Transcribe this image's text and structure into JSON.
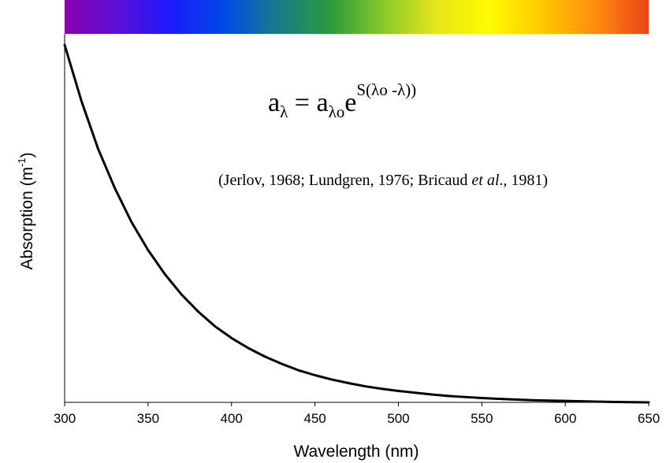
{
  "chart_data": {
    "type": "line",
    "title": "",
    "xlabel": "Wavelength (nm)",
    "ylabel": {
      "text": "Absorption (m",
      "superscript": "-1",
      "close": ")"
    },
    "xlim": [
      300,
      650
    ],
    "ylim": [
      0,
      1
    ],
    "xticks": [
      300,
      350,
      400,
      450,
      500,
      550,
      600,
      650
    ],
    "yticks_shown": false,
    "grid": false,
    "legend": "none",
    "series": [
      {
        "x": [
          300,
          310,
          320,
          330,
          340,
          350,
          360,
          370,
          380,
          390,
          400,
          410,
          420,
          430,
          440,
          450,
          460,
          470,
          480,
          490,
          500,
          510,
          520,
          530,
          540,
          550,
          560,
          570,
          580,
          590,
          600,
          610,
          620,
          630,
          640,
          650
        ],
        "y": [
          1.0,
          0.844,
          0.71,
          0.6,
          0.505,
          0.426,
          0.359,
          0.302,
          0.254,
          0.213,
          0.18,
          0.152,
          0.128,
          0.108,
          0.09,
          0.076,
          0.064,
          0.054,
          0.045,
          0.038,
          0.032,
          0.027,
          0.022,
          0.018,
          0.015,
          0.012,
          0.01,
          0.008,
          0.006,
          0.005,
          0.004,
          0.003,
          0.002,
          0.001,
          0.0005,
          0.0
        ]
      }
    ],
    "spectrum_band": {
      "colors": [
        "#8a00b0",
        "#5a10d8",
        "#1a1afa",
        "#0048e8",
        "#1c7a8a",
        "#2a9a3a",
        "#8ac82a",
        "#e6e61a",
        "#fffa00",
        "#ffc800",
        "#ff8c10",
        "#e84418"
      ]
    },
    "annotations": {
      "formula": {
        "a": "a",
        "lambda_sub": "λ",
        "equals": " = ",
        "a2": "a",
        "lambda0_sub": "λo",
        "e": "e",
        "exponent": "S(λo -λ))"
      },
      "citation": {
        "prefix": "(Jerlov, 1968; Lundgren, 1976; Bricaud ",
        "italic": "et al",
        "suffix": "., 1981)"
      }
    },
    "line_color": "#000000"
  }
}
